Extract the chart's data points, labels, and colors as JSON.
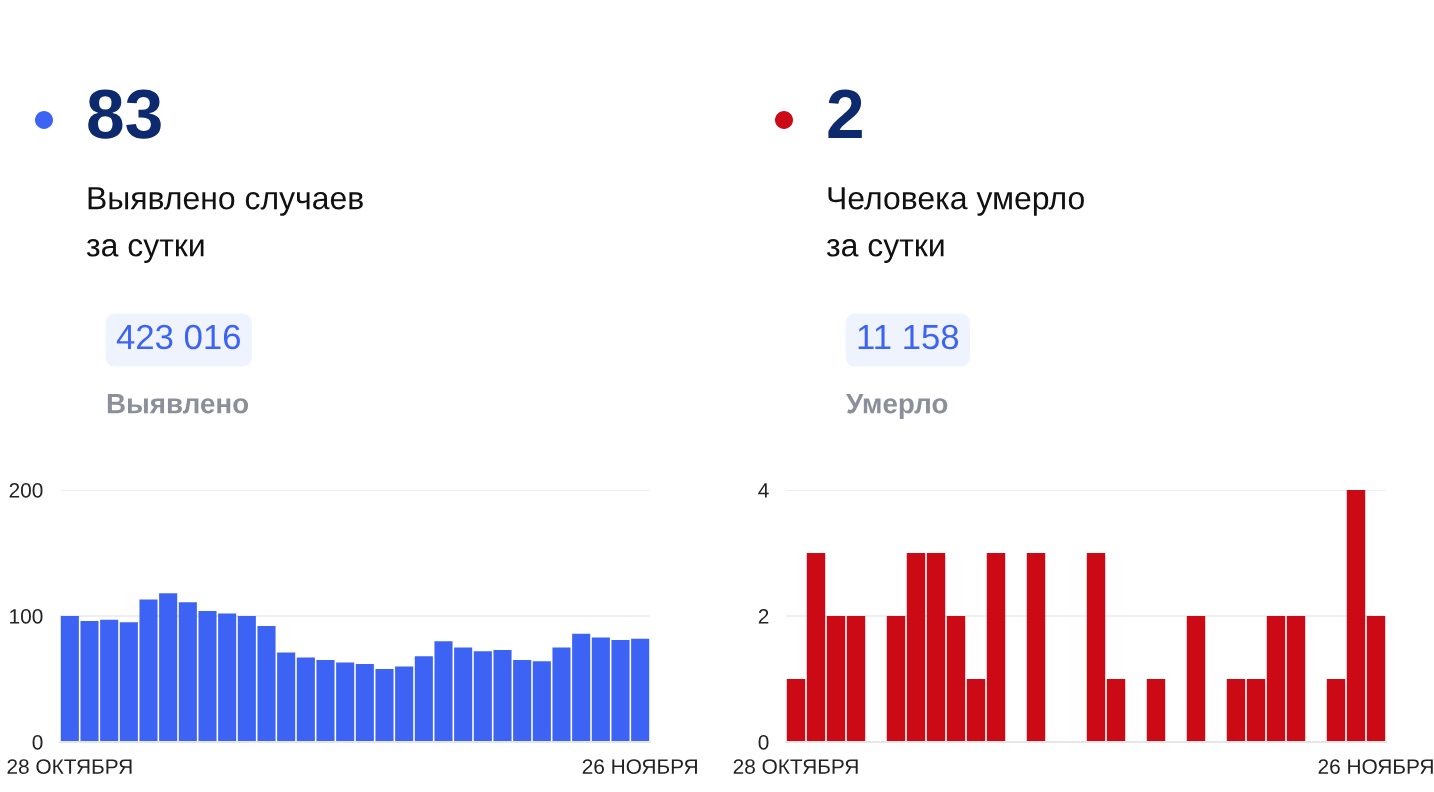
{
  "chart_data": [
    {
      "type": "bar",
      "title": "83",
      "subtitle": "Выявлено случаев\nза сутки",
      "annotations": [
        "423 016",
        "Выявлено"
      ],
      "categories": [
        "28 ОКТЯБРЯ",
        null,
        null,
        null,
        null,
        null,
        null,
        null,
        null,
        null,
        null,
        null,
        null,
        null,
        null,
        null,
        null,
        null,
        null,
        null,
        null,
        null,
        null,
        null,
        null,
        null,
        null,
        null,
        null,
        "26 НОЯБРЯ"
      ],
      "series": [
        {
          "color": "#3d63f5",
          "values": [
            100,
            96,
            97,
            95,
            113,
            118,
            111,
            104,
            102,
            100,
            92,
            71,
            67,
            65,
            63,
            62,
            58,
            60,
            68,
            80,
            75,
            72,
            73,
            65,
            64,
            75,
            86,
            83,
            81,
            82
          ]
        }
      ],
      "ylim": [
        0,
        200
      ],
      "yticks": [
        0,
        100,
        200
      ],
      "grid": "y",
      "legend": false
    },
    {
      "type": "bar",
      "title": "2",
      "subtitle": "Человека умерло\nза сутки",
      "annotations": [
        "11 158",
        "Умерло"
      ],
      "categories": [
        "28 ОКТЯБРЯ",
        null,
        null,
        null,
        null,
        null,
        null,
        null,
        null,
        null,
        null,
        null,
        null,
        null,
        null,
        null,
        null,
        null,
        null,
        null,
        null,
        null,
        null,
        null,
        null,
        null,
        null,
        null,
        null,
        "26 НОЯБРЯ"
      ],
      "series": [
        {
          "color": "#cc0a16",
          "values": [
            1,
            3,
            2,
            2,
            0,
            2,
            3,
            3,
            2,
            1,
            3,
            0,
            3,
            0,
            0,
            3,
            1,
            0,
            1,
            0,
            2,
            0,
            1,
            1,
            2,
            2,
            0,
            1,
            4,
            2
          ]
        }
      ],
      "ylim": [
        0,
        4
      ],
      "yticks": [
        0,
        2,
        4
      ],
      "grid": "y",
      "legend": false
    }
  ]
}
